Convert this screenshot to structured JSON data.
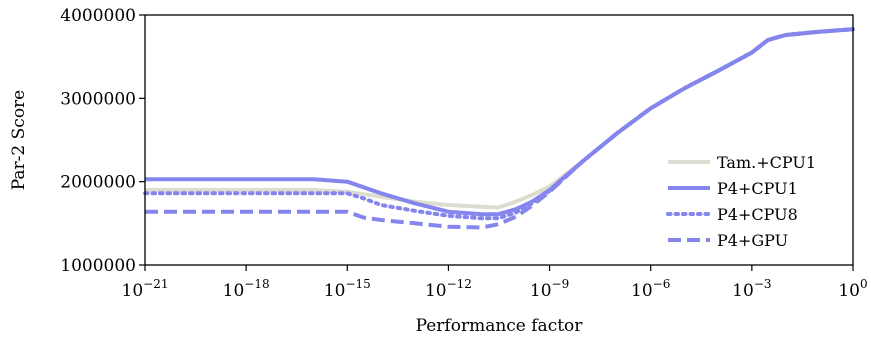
{
  "chart_data": {
    "type": "line",
    "xlabel": "Performance factor",
    "ylabel": "Par-2 Score",
    "xscale": "log",
    "xlim_exponent": [
      -21,
      0
    ],
    "ylim": [
      1000000,
      4000000
    ],
    "x_ticks": [
      {
        "base": "10",
        "exp": "−21"
      },
      {
        "base": "10",
        "exp": "−18"
      },
      {
        "base": "10",
        "exp": "−15"
      },
      {
        "base": "10",
        "exp": "−12"
      },
      {
        "base": "10",
        "exp": "−9"
      },
      {
        "base": "10",
        "exp": "−6"
      },
      {
        "base": "10",
        "exp": "−3"
      },
      {
        "base": "10",
        "exp": "0"
      }
    ],
    "y_ticks": [
      "1000000",
      "2000000",
      "3000000",
      "4000000"
    ],
    "y_tick_values": [
      1000000,
      2000000,
      3000000,
      4000000
    ],
    "legend_position": "lower-right",
    "series": [
      {
        "name": "Tam.+CPU1",
        "color": "#dcdccf",
        "dash": "solid",
        "points": [
          [
            1e-21,
            1900000
          ],
          [
            1e-16,
            1900000
          ],
          [
            1e-15,
            1880000
          ],
          [
            1e-14,
            1820000
          ],
          [
            1e-13,
            1760000
          ],
          [
            1e-12,
            1720000
          ],
          [
            1e-11,
            1700000
          ],
          [
            3e-11,
            1690000
          ],
          [
            1e-10,
            1760000
          ],
          [
            3e-10,
            1840000
          ],
          [
            1e-09,
            1940000
          ],
          [
            1e-08,
            2250000
          ],
          [
            1e-07,
            2580000
          ],
          [
            1e-06,
            2880000
          ],
          [
            1e-05,
            3120000
          ],
          [
            0.0001,
            3330000
          ],
          [
            0.001,
            3550000
          ],
          [
            0.003,
            3700000
          ],
          [
            0.01,
            3760000
          ],
          [
            0.1,
            3800000
          ],
          [
            1,
            3830000
          ]
        ]
      },
      {
        "name": "P4+CPU1",
        "color": "#8585ee",
        "dash": "solid",
        "points": [
          [
            1e-21,
            2030000
          ],
          [
            1e-16,
            2030000
          ],
          [
            1e-15,
            2000000
          ],
          [
            1e-14,
            1860000
          ],
          [
            1e-13,
            1740000
          ],
          [
            1e-12,
            1640000
          ],
          [
            1e-11,
            1610000
          ],
          [
            3e-11,
            1610000
          ],
          [
            1e-10,
            1670000
          ],
          [
            3e-10,
            1760000
          ],
          [
            1e-09,
            1900000
          ],
          [
            1e-08,
            2250000
          ],
          [
            1e-07,
            2580000
          ],
          [
            1e-06,
            2880000
          ],
          [
            1e-05,
            3120000
          ],
          [
            0.0001,
            3330000
          ],
          [
            0.001,
            3550000
          ],
          [
            0.003,
            3700000
          ],
          [
            0.01,
            3760000
          ],
          [
            0.1,
            3800000
          ],
          [
            1,
            3830000
          ]
        ]
      },
      {
        "name": "P4+CPU8",
        "color": "#8585ee",
        "dash": "dotted",
        "points": [
          [
            1e-21,
            1860000
          ],
          [
            1e-15,
            1860000
          ],
          [
            3e-15,
            1800000
          ],
          [
            1e-14,
            1720000
          ],
          [
            1e-13,
            1650000
          ],
          [
            1e-12,
            1590000
          ],
          [
            1e-11,
            1560000
          ],
          [
            3e-11,
            1560000
          ],
          [
            1e-10,
            1630000
          ],
          [
            3e-10,
            1740000
          ],
          [
            1e-09,
            1890000
          ],
          [
            1e-08,
            2250000
          ],
          [
            1e-07,
            2580000
          ],
          [
            1e-06,
            2880000
          ],
          [
            1e-05,
            3120000
          ],
          [
            0.0001,
            3330000
          ],
          [
            0.001,
            3550000
          ],
          [
            0.003,
            3700000
          ],
          [
            0.01,
            3760000
          ],
          [
            0.1,
            3800000
          ],
          [
            1,
            3830000
          ]
        ]
      },
      {
        "name": "P4+GPU",
        "color": "#8585ee",
        "dash": "dashed",
        "points": [
          [
            1e-21,
            1640000
          ],
          [
            1e-15,
            1640000
          ],
          [
            3e-15,
            1570000
          ],
          [
            1e-14,
            1540000
          ],
          [
            1e-13,
            1500000
          ],
          [
            1e-12,
            1460000
          ],
          [
            1e-11,
            1450000
          ],
          [
            3e-11,
            1490000
          ],
          [
            1e-10,
            1580000
          ],
          [
            3e-10,
            1710000
          ],
          [
            1e-09,
            1880000
          ],
          [
            1e-08,
            2250000
          ],
          [
            1e-07,
            2580000
          ],
          [
            1e-06,
            2880000
          ],
          [
            1e-05,
            3120000
          ],
          [
            0.0001,
            3330000
          ],
          [
            0.001,
            3550000
          ],
          [
            0.003,
            3700000
          ],
          [
            0.01,
            3760000
          ],
          [
            0.1,
            3800000
          ],
          [
            1,
            3830000
          ]
        ]
      }
    ]
  }
}
